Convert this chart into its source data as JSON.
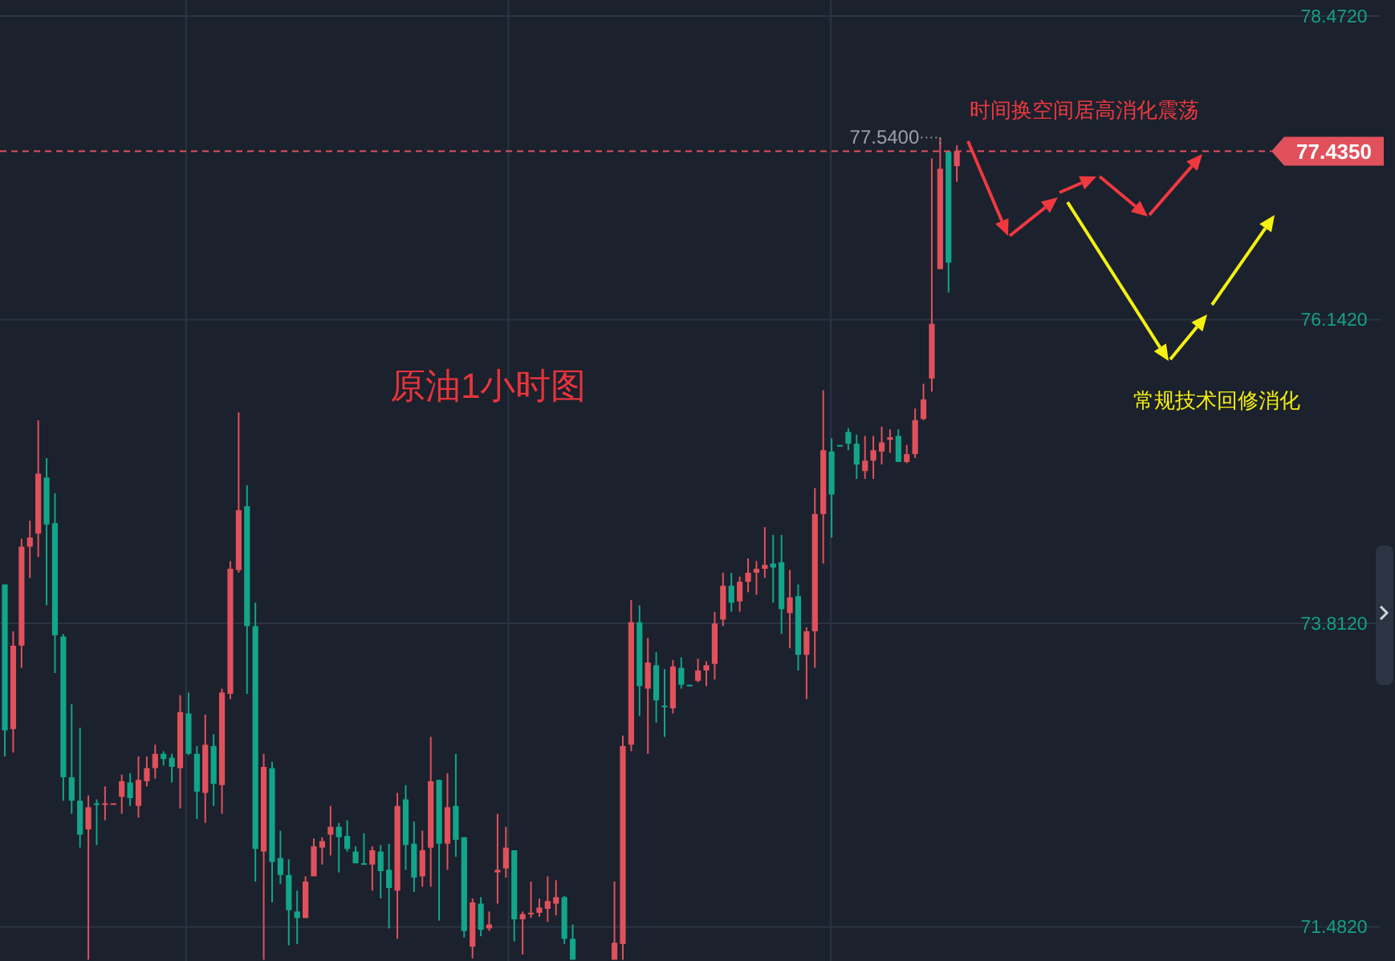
{
  "chart_data": {
    "type": "candlestick",
    "title": "原油1小时图",
    "categories": [
      null,
      null,
      null,
      null,
      null,
      null,
      null,
      null,
      null,
      null,
      null,
      null,
      null,
      null,
      null,
      null,
      null,
      null,
      null,
      null,
      null,
      null,
      null,
      null,
      null,
      null,
      null,
      null,
      null,
      null,
      null,
      null,
      null,
      null,
      null,
      null,
      null,
      null,
      null,
      null,
      null,
      null,
      null,
      null,
      null,
      null,
      null,
      null,
      null,
      null,
      null,
      null,
      null,
      null,
      null,
      null,
      null,
      null,
      null,
      null,
      null,
      null,
      null,
      null,
      null,
      null,
      null,
      null,
      null,
      null,
      null,
      null,
      null,
      null,
      null,
      null,
      null,
      null,
      null,
      null,
      null,
      null,
      null,
      null,
      null,
      null,
      null,
      null,
      null,
      null,
      null,
      null,
      null,
      null,
      null,
      null,
      null,
      null,
      null,
      null,
      null,
      null,
      null,
      null,
      null,
      null,
      null,
      null,
      null,
      null,
      null,
      null,
      null,
      null,
      null,
      null,
      null,
      null,
      null,
      null,
      null,
      null,
      null,
      null,
      null,
      null,
      null,
      null,
      null,
      null,
      null,
      null,
      null,
      null,
      null,
      null,
      null,
      null,
      null,
      null,
      null,
      null,
      null,
      null,
      null,
      null,
      null,
      null,
      null,
      null,
      null,
      null,
      null,
      null
    ],
    "ohlc": [
      [
        74.11,
        74.11,
        72.79,
        72.99
      ],
      [
        73.0,
        73.75,
        72.82,
        73.64
      ],
      [
        73.64,
        74.46,
        73.47,
        74.4
      ],
      [
        74.4,
        74.6,
        74.16,
        74.47
      ],
      [
        74.5,
        75.37,
        74.32,
        74.96
      ],
      [
        74.93,
        75.08,
        73.95,
        74.57
      ],
      [
        74.58,
        74.81,
        73.43,
        73.72
      ],
      [
        73.71,
        73.73,
        72.45,
        72.63
      ],
      [
        72.63,
        73.19,
        72.35,
        72.45
      ],
      [
        72.45,
        73.01,
        72.09,
        72.19
      ],
      [
        72.23,
        72.49,
        71.23,
        72.4
      ],
      [
        72.43,
        72.46,
        72.11,
        72.42
      ],
      [
        72.42,
        72.56,
        72.3,
        72.43
      ],
      [
        72.42,
        72.43,
        72.42,
        72.43
      ],
      [
        72.48,
        72.65,
        72.35,
        72.6
      ],
      [
        72.59,
        72.66,
        72.41,
        72.47
      ],
      [
        72.41,
        72.79,
        72.32,
        72.61
      ],
      [
        72.6,
        72.79,
        72.56,
        72.7
      ],
      [
        72.7,
        72.88,
        72.62,
        72.81
      ],
      [
        72.81,
        72.83,
        72.72,
        72.77
      ],
      [
        72.78,
        72.81,
        72.59,
        72.71
      ],
      [
        72.7,
        73.26,
        72.39,
        73.13
      ],
      [
        73.12,
        73.28,
        72.8,
        72.81
      ],
      [
        72.81,
        72.87,
        72.31,
        72.52
      ],
      [
        72.51,
        73.11,
        72.28,
        72.88
      ],
      [
        72.87,
        72.96,
        72.41,
        72.58
      ],
      [
        72.57,
        73.31,
        72.35,
        73.28
      ],
      [
        73.27,
        74.29,
        73.23,
        74.23
      ],
      [
        74.22,
        75.43,
        74.2,
        74.68
      ],
      [
        74.71,
        74.87,
        73.27,
        73.79
      ],
      [
        73.79,
        73.97,
        71.83,
        72.08
      ],
      [
        72.06,
        72.81,
        71.23,
        72.71
      ],
      [
        72.7,
        72.75,
        71.67,
        71.98
      ],
      [
        72.01,
        72.22,
        71.81,
        71.88
      ],
      [
        71.88,
        72.0,
        71.34,
        71.61
      ],
      [
        71.6,
        71.76,
        71.35,
        71.55
      ],
      [
        71.55,
        71.87,
        71.55,
        71.83
      ],
      [
        71.87,
        72.16,
        71.87,
        72.1
      ],
      [
        72.09,
        72.17,
        71.96,
        72.14
      ],
      [
        72.19,
        72.41,
        72.03,
        72.25
      ],
      [
        72.25,
        72.28,
        71.9,
        72.17
      ],
      [
        72.18,
        72.3,
        72.06,
        72.08
      ],
      [
        72.06,
        72.1,
        71.97,
        71.97
      ],
      [
        71.97,
        72.2,
        71.96,
        71.96
      ],
      [
        71.96,
        72.1,
        71.76,
        72.07
      ],
      [
        72.06,
        72.11,
        71.7,
        71.91
      ],
      [
        71.92,
        72.12,
        71.47,
        71.78
      ],
      [
        71.76,
        72.51,
        71.39,
        72.41
      ],
      [
        72.46,
        72.57,
        71.92,
        72.11
      ],
      [
        72.12,
        72.29,
        71.75,
        71.86
      ],
      [
        71.87,
        72.22,
        71.79,
        72.07
      ],
      [
        72.09,
        72.94,
        71.79,
        72.6
      ],
      [
        72.61,
        72.61,
        71.53,
        72.12
      ],
      [
        72.12,
        72.66,
        71.92,
        72.4
      ],
      [
        72.41,
        72.81,
        72.02,
        72.15
      ],
      [
        72.17,
        72.17,
        71.4,
        71.45
      ],
      [
        71.33,
        71.7,
        71.24,
        71.67
      ],
      [
        71.66,
        71.71,
        71.41,
        71.46
      ],
      [
        71.47,
        71.6,
        71.45,
        71.5
      ],
      [
        71.9,
        72.35,
        71.66,
        71.92
      ],
      [
        71.93,
        72.25,
        71.86,
        72.09
      ],
      [
        72.07,
        72.07,
        71.37,
        71.54
      ],
      [
        71.54,
        71.6,
        71.27,
        71.58
      ],
      [
        71.58,
        71.83,
        71.55,
        71.59
      ],
      [
        71.59,
        71.7,
        71.56,
        71.63
      ],
      [
        71.62,
        71.87,
        71.52,
        71.68
      ],
      [
        71.66,
        71.84,
        71.57,
        71.71
      ],
      [
        71.71,
        71.72,
        71.35,
        71.39
      ],
      [
        71.39,
        71.5,
        71.23,
        71.23
      ],
      null,
      null,
      null,
      null,
      [
        71.23,
        71.83,
        71.23,
        71.36
      ],
      [
        71.35,
        72.95,
        71.23,
        72.87
      ],
      [
        72.88,
        73.99,
        72.83,
        73.82
      ],
      [
        73.82,
        73.95,
        73.1,
        73.33
      ],
      [
        73.31,
        73.7,
        72.81,
        73.51
      ],
      [
        73.49,
        73.59,
        73.05,
        73.22
      ],
      [
        73.18,
        73.46,
        72.94,
        73.17
      ],
      [
        73.16,
        73.53,
        73.12,
        73.48
      ],
      [
        73.47,
        73.55,
        73.31,
        73.34
      ],
      [
        73.34,
        73.34,
        73.33,
        73.33
      ],
      [
        73.37,
        73.54,
        73.36,
        73.45
      ],
      [
        73.45,
        73.52,
        73.33,
        73.49
      ],
      [
        73.5,
        73.9,
        73.38,
        73.81
      ],
      [
        73.84,
        74.2,
        73.79,
        74.1
      ],
      [
        74.1,
        74.2,
        73.9,
        73.97
      ],
      [
        73.98,
        74.17,
        73.9,
        74.13
      ],
      [
        74.13,
        74.31,
        74.05,
        74.2
      ],
      [
        74.2,
        74.29,
        74.03,
        74.23
      ],
      [
        74.23,
        74.55,
        74.16,
        74.26
      ],
      [
        74.27,
        74.49,
        73.97,
        74.24
      ],
      [
        74.28,
        74.49,
        73.73,
        73.92
      ],
      [
        73.89,
        74.22,
        73.62,
        74.01
      ],
      [
        74.02,
        74.11,
        73.45,
        73.57
      ],
      [
        73.57,
        73.78,
        73.23,
        73.75
      ],
      [
        73.75,
        74.85,
        73.47,
        74.65
      ],
      [
        74.65,
        75.6,
        74.27,
        75.14
      ],
      [
        75.13,
        75.23,
        74.47,
        74.8
      ],
      [
        75.18,
        75.18,
        75.17,
        75.17
      ],
      [
        75.28,
        75.31,
        75.14,
        75.19
      ],
      [
        75.19,
        75.26,
        74.92,
        75.03
      ],
      [
        74.98,
        75.25,
        74.92,
        75.06
      ],
      [
        75.06,
        75.25,
        74.92,
        75.14
      ],
      [
        75.13,
        75.32,
        75.03,
        75.2
      ],
      [
        75.22,
        75.3,
        75.12,
        75.24
      ],
      [
        75.25,
        75.3,
        75.05,
        75.05
      ],
      [
        75.05,
        75.18,
        75.04,
        75.11
      ],
      [
        75.11,
        75.46,
        75.08,
        75.37
      ],
      [
        75.38,
        75.65,
        75.37,
        75.53
      ],
      [
        75.69,
        77.38,
        75.59,
        76.11
      ],
      [
        76.53,
        77.54,
        76.53,
        77.3
      ],
      [
        77.43,
        77.44,
        76.35,
        76.58
      ],
      [
        77.32,
        77.48,
        77.2,
        77.435
      ],
      null,
      null,
      null,
      null,
      null,
      null,
      null,
      null,
      null,
      null,
      null,
      null,
      null,
      null,
      null,
      null,
      null,
      null,
      null,
      null,
      null,
      null,
      null,
      null,
      null,
      null,
      null,
      null,
      null,
      null,
      null,
      null,
      null,
      null,
      null,
      null,
      null,
      null,
      null
    ],
    "ylim": [
      71.22,
      78.472
    ],
    "yticks": [
      {
        "value": 71.482,
        "label": "71.4820"
      },
      {
        "value": 73.812,
        "label": "73.8120"
      },
      {
        "value": 76.142,
        "label": "76.1420"
      },
      {
        "value": 78.472,
        "label": "78.4720"
      }
    ],
    "grid": true,
    "tick_labels": "y",
    "ref_lines": [
      {
        "axis": "y",
        "value": 77.435,
        "label": "77.4350",
        "color": "#e0515c",
        "line_style": "dashed"
      }
    ],
    "annotations": [
      "77.5400",
      "时间换空间居高消化震荡",
      "常规技术回修消化"
    ]
  }
}
